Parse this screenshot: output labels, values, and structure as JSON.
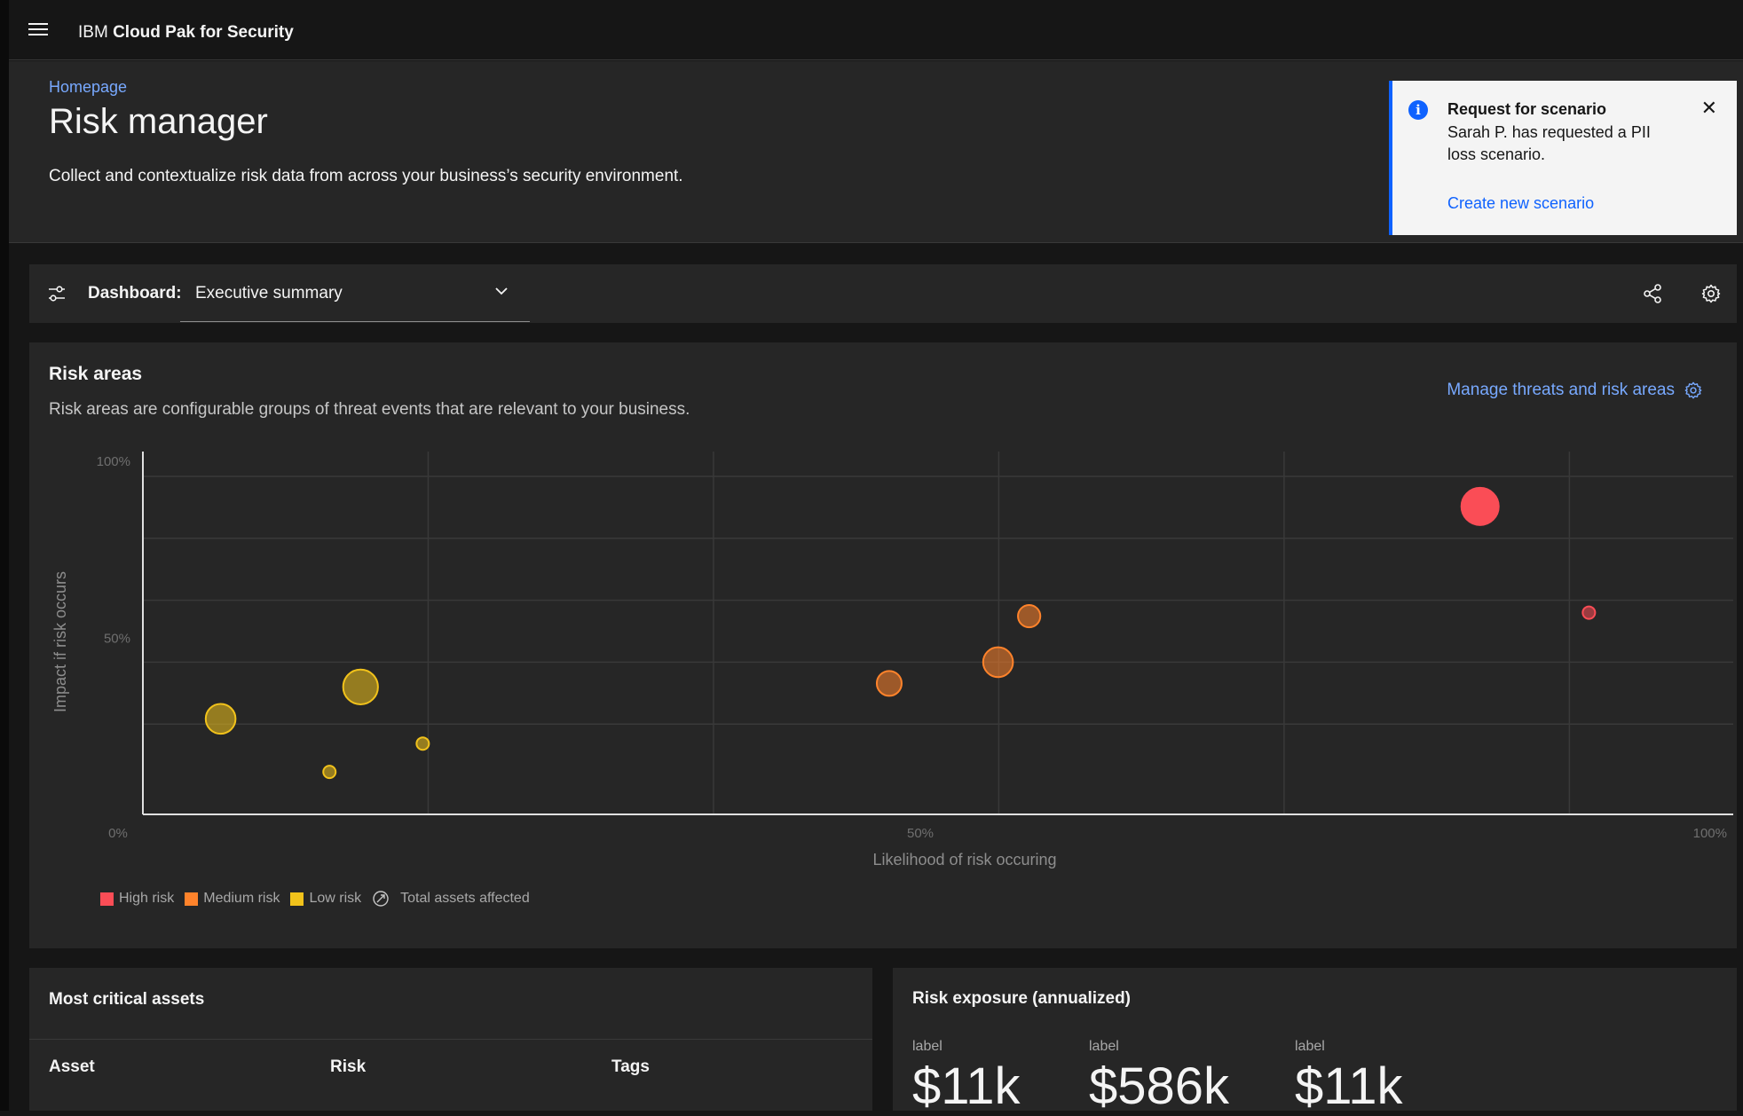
{
  "app": {
    "brand_prefix": "IBM",
    "brand_name": "Cloud Pak for Security"
  },
  "header": {
    "breadcrumb": "Homepage",
    "title": "Risk manager",
    "subtitle": "Collect and contextualize risk data from across your business’s security environment."
  },
  "notification": {
    "title": "Request for scenario",
    "body": "Sarah P. has requested a PII loss scenario.",
    "link": "Create new scenario",
    "icon": "info-icon",
    "close_icon": "close-icon"
  },
  "dashboard": {
    "label": "Dashboard:",
    "selected": "Executive summary"
  },
  "risk_areas": {
    "title": "Risk areas",
    "description": "Risk areas are configurable groups of threat events that are relevant to your business.",
    "manage_link": "Manage threats and risk areas"
  },
  "chart_data": {
    "type": "scatter",
    "xlabel": "Likelihood of risk occuring",
    "ylabel": "Impact if risk occurs",
    "xlim": [
      0,
      100
    ],
    "ylim": [
      0,
      100
    ],
    "x_ticks": [
      "0%",
      "50%",
      "100%"
    ],
    "y_ticks": [
      "100%",
      "50%"
    ],
    "grid": true,
    "series": [
      {
        "name": "High risk",
        "color": "#fa4d56",
        "points": [
          {
            "x": 86,
            "y": 87,
            "size": 3
          },
          {
            "x": 93,
            "y": 57,
            "size": 1
          }
        ]
      },
      {
        "name": "Medium risk",
        "color": "#ff832b",
        "points": [
          {
            "x": 48,
            "y": 37,
            "size": 2
          },
          {
            "x": 55,
            "y": 43,
            "size": 2.4
          },
          {
            "x": 57,
            "y": 56,
            "size": 1.8
          }
        ]
      },
      {
        "name": "Low risk",
        "color": "#f1c21b",
        "points": [
          {
            "x": 5,
            "y": 27,
            "size": 2.4
          },
          {
            "x": 14,
            "y": 36,
            "size": 2.8
          },
          {
            "x": 12,
            "y": 12,
            "size": 1
          },
          {
            "x": 18,
            "y": 20,
            "size": 1
          }
        ]
      }
    ],
    "legend_extra": "Total assets affected",
    "legend_position": "bottom-left"
  },
  "critical_assets": {
    "title": "Most critical assets",
    "columns": [
      "Asset",
      "Risk",
      "Tags"
    ]
  },
  "risk_exposure": {
    "title": "Risk exposure (annualized)",
    "stats": [
      {
        "label": "label",
        "value": "$11k"
      },
      {
        "label": "label",
        "value": "$586k"
      },
      {
        "label": "label",
        "value": "$11k"
      }
    ]
  }
}
